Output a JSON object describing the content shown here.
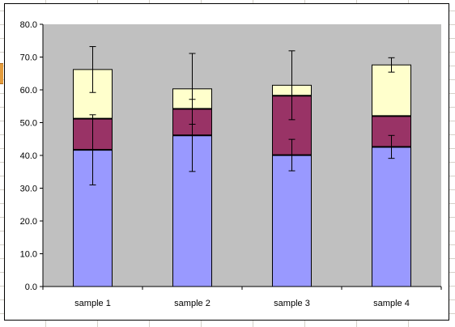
{
  "chart_data": {
    "type": "bar",
    "stacked": true,
    "categories": [
      "sample 1",
      "sample 2",
      "sample 3",
      "sample 4"
    ],
    "series": [
      {
        "values": [
          41.7,
          46.1,
          40.1,
          42.6
        ],
        "color": "#9999ff",
        "error": [
          10.7,
          11.0,
          4.8,
          3.5
        ]
      },
      {
        "values": [
          9.5,
          8.1,
          18.1,
          9.4
        ],
        "color": "#993366"
      },
      {
        "values": [
          15.0,
          6.1,
          3.2,
          15.6
        ],
        "color": "#ffffcc",
        "error": [
          7.0,
          10.8,
          10.5,
          2.2
        ]
      }
    ],
    "y_ticks": [
      "0.0",
      "10.0",
      "20.0",
      "30.0",
      "40.0",
      "50.0",
      "60.0",
      "70.0",
      "80.0"
    ],
    "ylim": [
      0,
      80
    ],
    "plot_background": "#c0c0c0",
    "grid": false,
    "legend": "none"
  }
}
